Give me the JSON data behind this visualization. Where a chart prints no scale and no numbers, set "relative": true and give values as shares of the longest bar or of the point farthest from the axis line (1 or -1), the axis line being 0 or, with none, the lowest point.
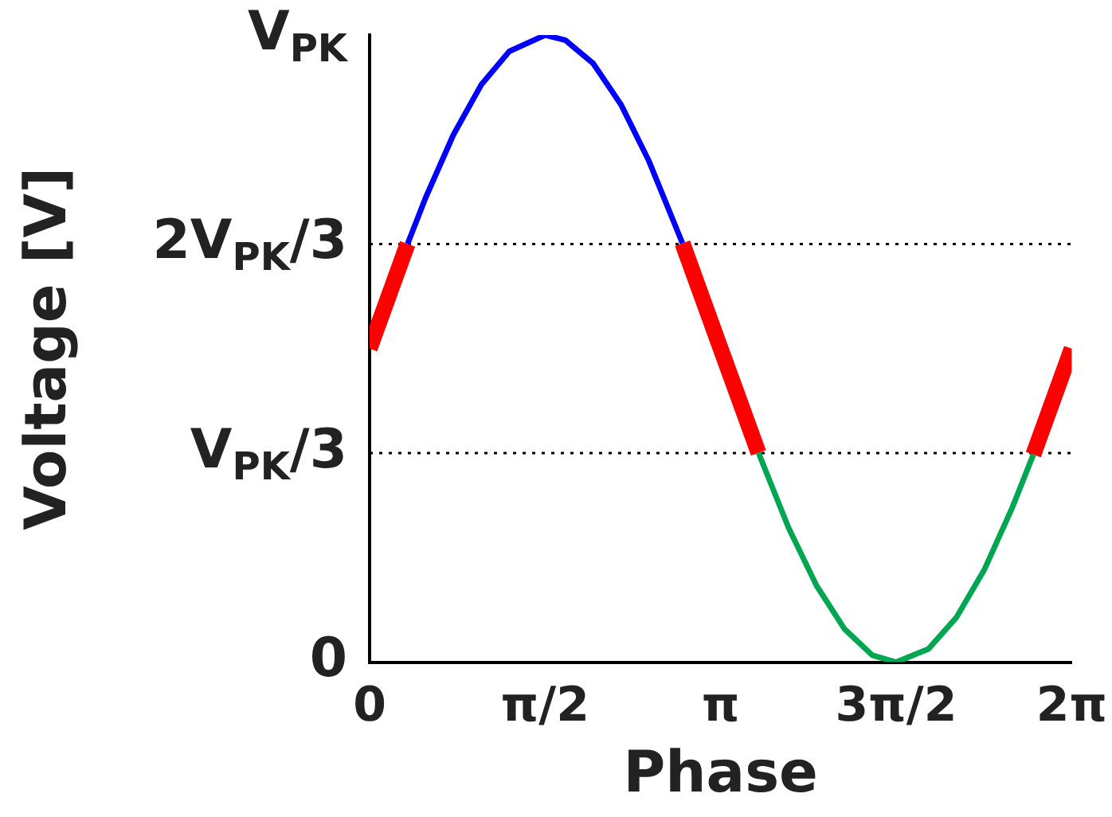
{
  "chart_data": {
    "type": "line",
    "xlabel": "Phase",
    "ylabel": "Voltage [V]",
    "xlim": [
      0,
      6.2832
    ],
    "relative": true,
    "annotations": [
      "V$_{PK}$",
      "0"
    ],
    "xticks": [
      0,
      {
        "value": 1.5708,
        "label": "π/2"
      },
      {
        "value": 3.1416,
        "label": "π"
      },
      {
        "value": 4.7124,
        "label": "3π/2"
      },
      {
        "value": 6.2832,
        "label": "2π"
      }
    ],
    "ref_lines": [
      {
        "axis": "y",
        "value": 0.3333,
        "label": "V$_{PK}$/3",
        "color": "#000000",
        "line_style": "dotted"
      },
      {
        "axis": "y",
        "value": 0.6667,
        "label": "2V$_{PK}$/3",
        "color": "#000000",
        "line_style": "dotted"
      }
    ],
    "marker": "none",
    "line_style": "solid",
    "grid": false,
    "legend": false,
    "series": [
      {
        "color": "#0000ff",
        "x": [
          0.34,
          0.5,
          0.75,
          1.0,
          1.25,
          1.5708,
          1.75,
          2.0,
          2.25,
          2.5,
          2.8
        ],
        "values": [
          0.667,
          0.74,
          0.841,
          0.921,
          0.974,
          1,
          0.992,
          0.955,
          0.889,
          0.799,
          0.668
        ]
      },
      {
        "color": "#00a650",
        "x": [
          3.48,
          3.75,
          4.0,
          4.25,
          4.5,
          4.7124,
          5.0,
          5.25,
          5.5,
          5.75,
          5.94
        ],
        "values": [
          0.334,
          0.214,
          0.122,
          0.053,
          0.011,
          0,
          0.021,
          0.071,
          0.147,
          0.246,
          0.331
        ]
      },
      {
        "color": "#ff0000",
        "x": [
          0,
          0.34,
          1.5,
          2.8,
          3.1416,
          3.48,
          4.7,
          5.94,
          6.2832
        ],
        "values": [
          0.5,
          0.667,
          null,
          0.668,
          0.5,
          0.334,
          null,
          0.331,
          0.5
        ]
      }
    ]
  }
}
